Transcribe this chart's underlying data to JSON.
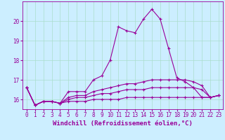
{
  "xlabel": "Windchill (Refroidissement éolien,°C)",
  "ylabel": "",
  "background_color": "#cceeff",
  "line_color": "#990099",
  "grid_color": "#aaddcc",
  "hours": [
    0,
    1,
    2,
    3,
    4,
    5,
    6,
    7,
    8,
    9,
    10,
    11,
    12,
    13,
    14,
    15,
    16,
    17,
    18,
    19,
    20,
    21,
    22,
    23
  ],
  "series": [
    [
      16.6,
      15.7,
      15.9,
      15.9,
      15.8,
      16.4,
      16.4,
      16.4,
      17.0,
      17.2,
      18.0,
      19.7,
      19.5,
      19.4,
      20.1,
      20.6,
      20.1,
      18.6,
      17.1,
      16.9,
      16.6,
      16.1,
      16.1,
      16.2
    ],
    [
      16.6,
      15.7,
      15.9,
      15.9,
      15.8,
      16.1,
      16.2,
      16.2,
      16.4,
      16.5,
      16.6,
      16.7,
      16.8,
      16.8,
      16.9,
      17.0,
      17.0,
      17.0,
      17.0,
      17.0,
      16.9,
      16.7,
      16.1,
      16.2
    ],
    [
      16.6,
      15.7,
      15.9,
      15.9,
      15.8,
      16.0,
      16.1,
      16.1,
      16.2,
      16.3,
      16.3,
      16.4,
      16.5,
      16.5,
      16.5,
      16.6,
      16.6,
      16.6,
      16.6,
      16.6,
      16.6,
      16.5,
      16.1,
      16.2
    ],
    [
      16.6,
      15.7,
      15.9,
      15.9,
      15.8,
      15.9,
      15.9,
      15.9,
      16.0,
      16.0,
      16.0,
      16.0,
      16.1,
      16.1,
      16.1,
      16.1,
      16.1,
      16.1,
      16.1,
      16.1,
      16.1,
      16.1,
      16.1,
      16.2
    ]
  ],
  "ylim": [
    15.5,
    21.0
  ],
  "yticks": [
    16,
    17,
    18,
    19,
    20
  ],
  "xticks": [
    0,
    1,
    2,
    3,
    4,
    5,
    6,
    7,
    8,
    9,
    10,
    11,
    12,
    13,
    14,
    15,
    16,
    17,
    18,
    19,
    20,
    21,
    22,
    23
  ],
  "tick_fontsize": 5.5,
  "xlabel_fontsize": 6.5,
  "marker": "+",
  "markersize": 3,
  "linewidth": 0.8,
  "markeredgewidth": 0.8
}
